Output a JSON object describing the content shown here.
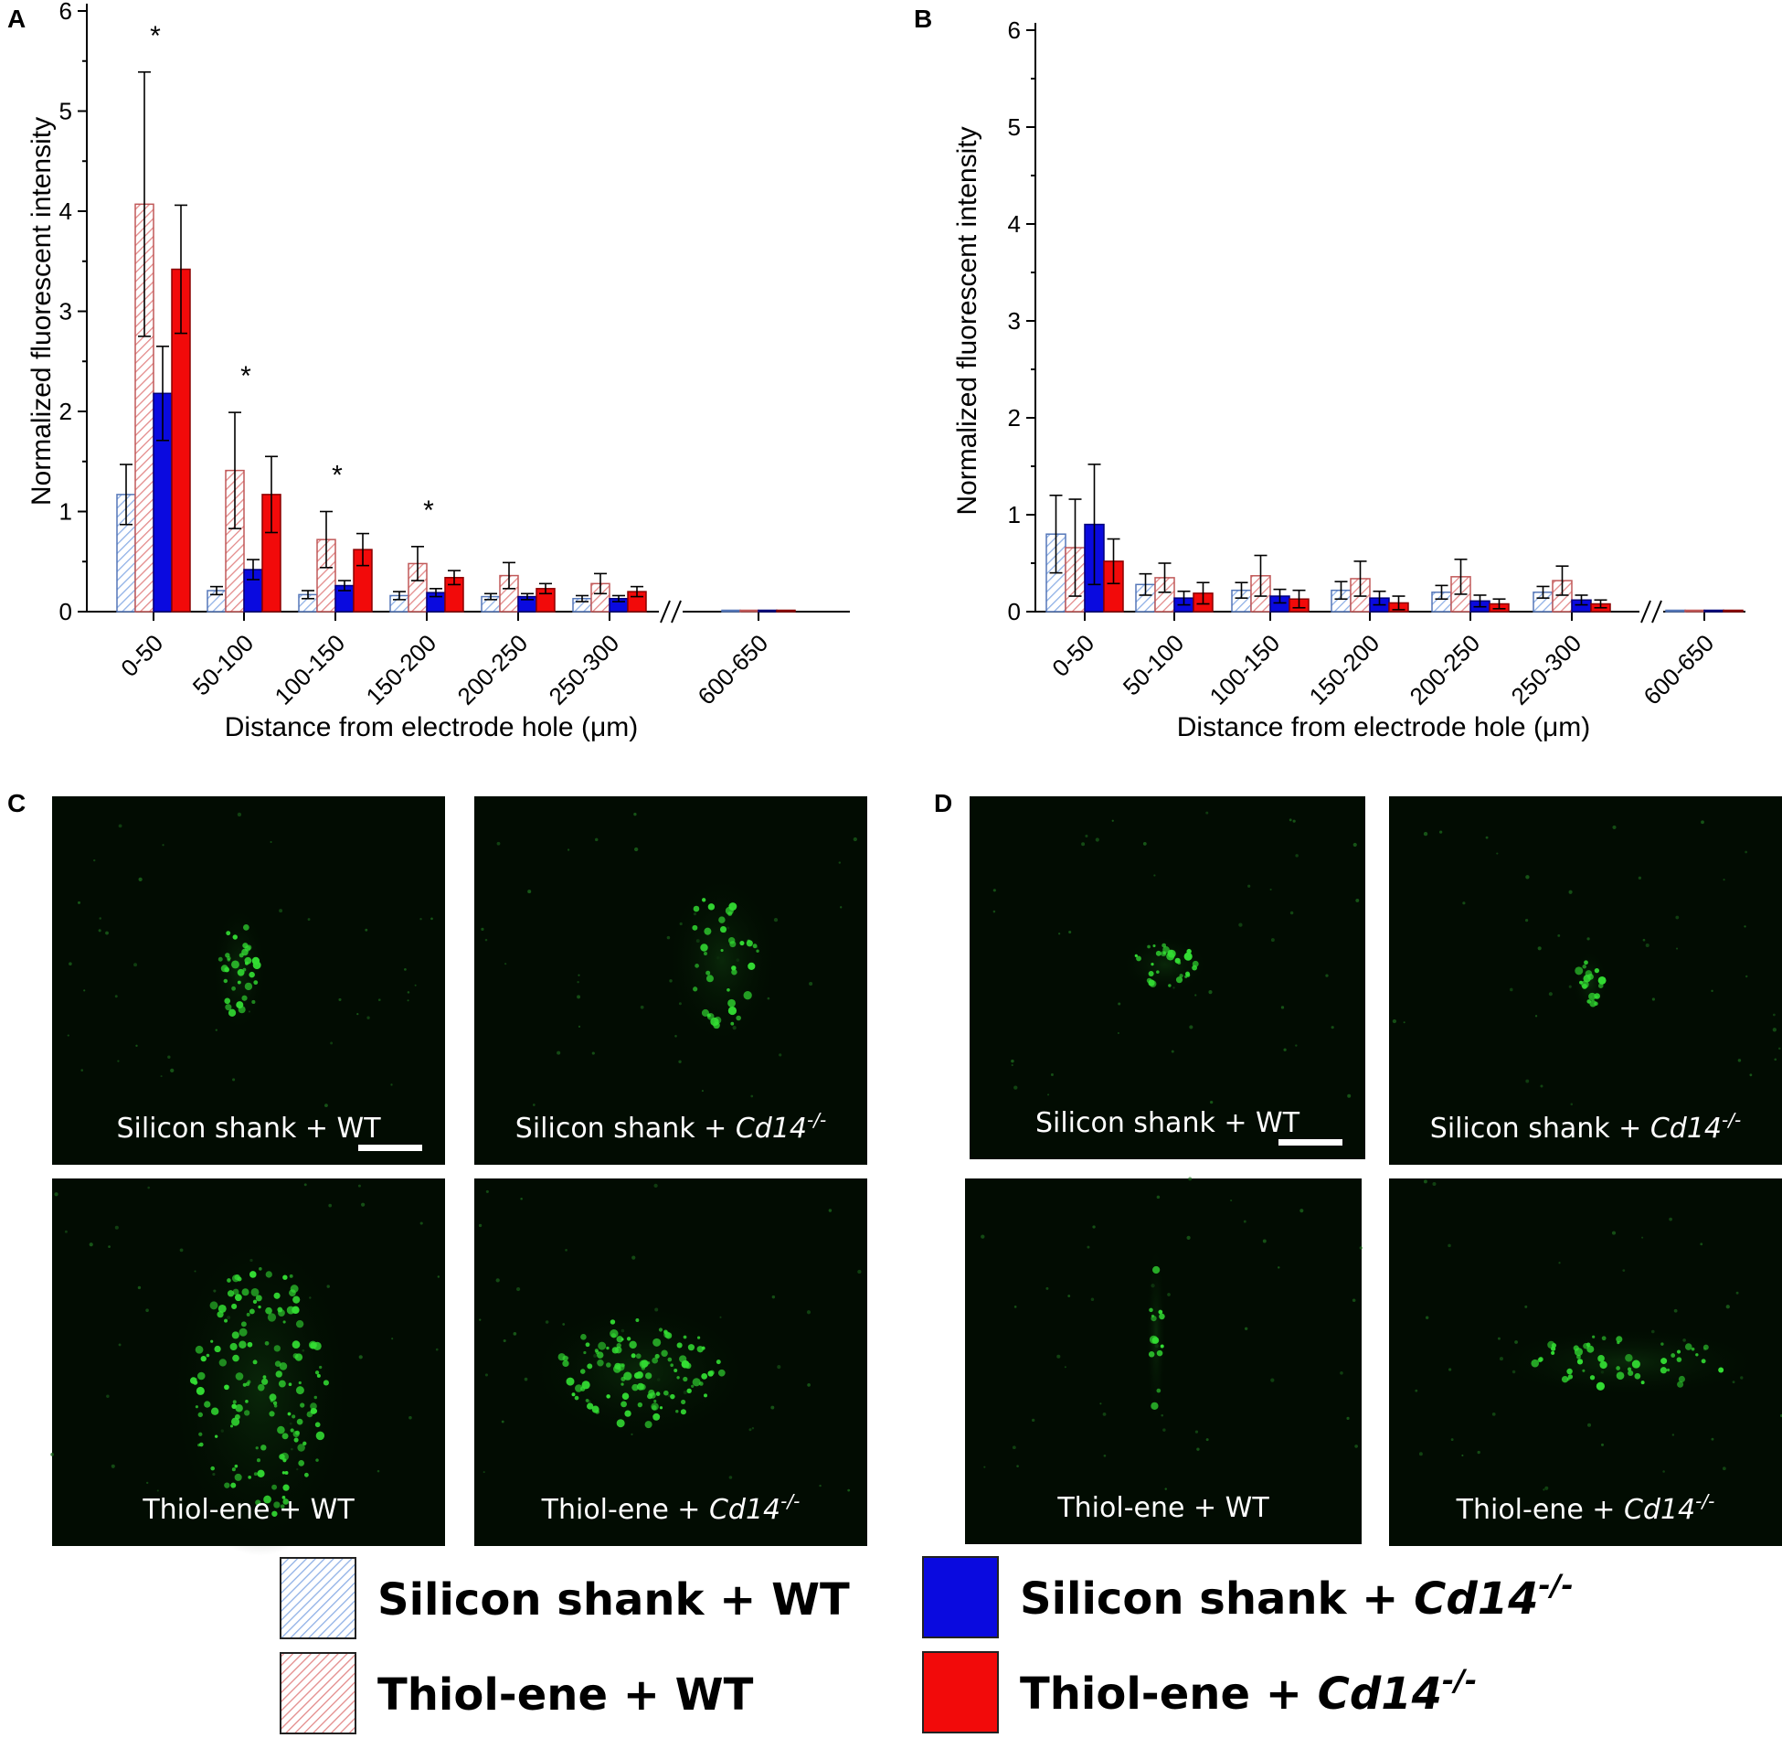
{
  "panels": {
    "A": "A",
    "B": "B",
    "C": "C",
    "D": "D"
  },
  "colors": {
    "silicon_wt": "#8fb0e6",
    "thiol_wt": "#e38a8a",
    "silicon_cd14": "#0a0adf",
    "thiol_cd14": "#f20a0a",
    "micro_bg": "#020c02",
    "puncta": "#33dd33"
  },
  "chart_data": [
    {
      "type": "bar",
      "panel": "A",
      "ylabel": "Normalized fluorescent intensity",
      "xlabel": "Distance from electrode hole (μm)",
      "ylim": [
        0,
        6
      ],
      "yticks": [
        "0",
        "1",
        "2",
        "3",
        "4",
        "5",
        "6"
      ],
      "categories": [
        "0-50",
        "50-100",
        "100-150",
        "150-200",
        "200-250",
        "250-300",
        "600-650"
      ],
      "axis_break": "//",
      "significance": [
        "*",
        "*",
        "*",
        "*",
        "",
        "",
        ""
      ],
      "series": [
        {
          "name": "Silicon shank + WT",
          "values": [
            1.17,
            0.21,
            0.17,
            0.16,
            0.15,
            0.13,
            0.0
          ],
          "err": [
            0.3,
            0.04,
            0.04,
            0.04,
            0.03,
            0.03,
            0.0
          ]
        },
        {
          "name": "Thiol-ene + WT",
          "values": [
            4.07,
            1.41,
            0.72,
            0.48,
            0.36,
            0.28,
            0.01
          ],
          "err": [
            1.32,
            0.58,
            0.28,
            0.17,
            0.13,
            0.1,
            0.0
          ]
        },
        {
          "name": "Silicon shank + Cd14-/-",
          "values": [
            2.18,
            0.42,
            0.26,
            0.19,
            0.15,
            0.13,
            0.0
          ],
          "err": [
            0.47,
            0.1,
            0.05,
            0.04,
            0.03,
            0.03,
            0.0
          ]
        },
        {
          "name": "Thiol-ene + Cd14-/-",
          "values": [
            3.42,
            1.17,
            0.62,
            0.34,
            0.23,
            0.2,
            0.01
          ],
          "err": [
            0.64,
            0.38,
            0.16,
            0.07,
            0.05,
            0.05,
            0.0
          ]
        }
      ]
    },
    {
      "type": "bar",
      "panel": "B",
      "ylabel": "Normalized fluorescent intensity",
      "xlabel": "Distance from electrode hole (μm)",
      "ylim": [
        0,
        6
      ],
      "yticks": [
        "0",
        "1",
        "2",
        "3",
        "4",
        "5",
        "6"
      ],
      "categories": [
        "0-50",
        "50-100",
        "100-150",
        "150-200",
        "200-250",
        "250-300",
        "600-650"
      ],
      "axis_break": "//",
      "significance": [
        "",
        "",
        "",
        "",
        "",
        "",
        ""
      ],
      "series": [
        {
          "name": "Silicon shank + WT",
          "values": [
            0.8,
            0.28,
            0.22,
            0.22,
            0.2,
            0.2,
            0.0
          ],
          "err": [
            0.4,
            0.11,
            0.08,
            0.09,
            0.07,
            0.06,
            0.0
          ]
        },
        {
          "name": "Thiol-ene + WT",
          "values": [
            0.66,
            0.35,
            0.37,
            0.34,
            0.36,
            0.32,
            0.01
          ],
          "err": [
            0.5,
            0.15,
            0.21,
            0.18,
            0.18,
            0.15,
            0.0
          ]
        },
        {
          "name": "Silicon shank + Cd14-/-",
          "values": [
            0.9,
            0.14,
            0.16,
            0.14,
            0.11,
            0.12,
            0.01
          ],
          "err": [
            0.62,
            0.07,
            0.07,
            0.07,
            0.06,
            0.05,
            0.0
          ]
        },
        {
          "name": "Thiol-ene + Cd14-/-",
          "values": [
            0.52,
            0.19,
            0.13,
            0.09,
            0.08,
            0.08,
            0.01
          ],
          "err": [
            0.23,
            0.11,
            0.09,
            0.07,
            0.05,
            0.04,
            0.0
          ]
        }
      ]
    }
  ],
  "micrographs": {
    "C": [
      {
        "label": "Silicon shank + WT",
        "scale_bar": true
      },
      {
        "label_plain": "Silicon shank + ",
        "label_ital": "Cd14",
        "label_sup": "-/-"
      },
      {
        "label": "Thiol-ene + WT"
      },
      {
        "label_plain": "Thiol-ene + ",
        "label_ital": "Cd14",
        "label_sup": "-/-"
      }
    ],
    "D": [
      {
        "label": "Silicon shank + WT",
        "scale_bar": true
      },
      {
        "label_plain": "Silicon shank + ",
        "label_ital": "Cd14",
        "label_sup": "-/-"
      },
      {
        "label": "Thiol-ene + WT"
      },
      {
        "label_plain": "Thiol-ene + ",
        "label_ital": "Cd14",
        "label_sup": "-/-"
      }
    ]
  },
  "legend": [
    {
      "plain": "Silicon shank + WT",
      "ital": "",
      "sup": ""
    },
    {
      "plain": "Thiol-ene + WT",
      "ital": "",
      "sup": ""
    },
    {
      "plain": "Silicon shank + ",
      "ital": "Cd14",
      "sup": "-/-"
    },
    {
      "plain": "Thiol-ene + ",
      "ital": "Cd14",
      "sup": "-/-"
    }
  ]
}
